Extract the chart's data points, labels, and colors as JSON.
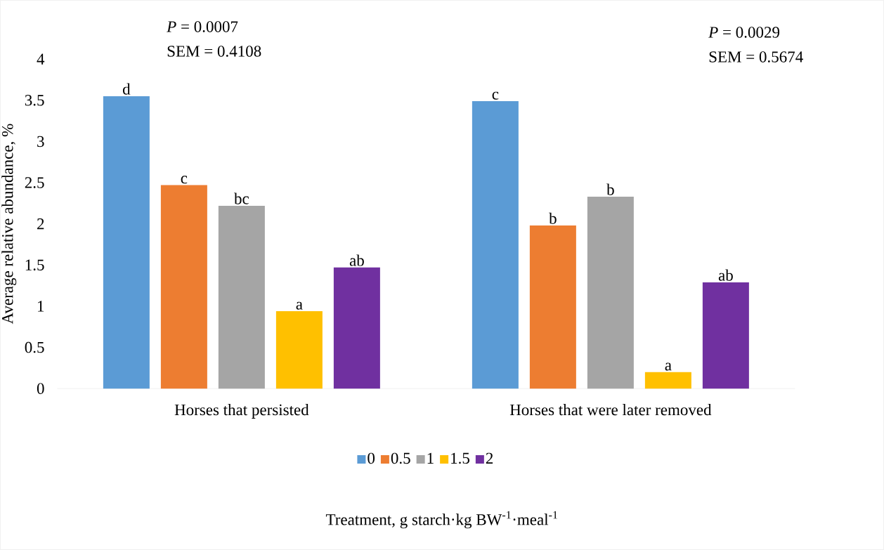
{
  "chart_data": {
    "type": "bar",
    "categories": [
      "Horses that persisted",
      "Horses that were later removed"
    ],
    "ylabel": "Average relative abundance, %",
    "legend_title": "Treatment, g starch·kg BW$^{-1}$·meal$^{-1}$",
    "series": [
      {
        "name": "0",
        "color": "#5b9bd5",
        "values": [
          3.55,
          3.49
        ],
        "value_labels": [
          "d",
          "c"
        ]
      },
      {
        "name": "0.5",
        "color": "#ed7d31",
        "values": [
          2.47,
          1.98
        ],
        "value_labels": [
          "c",
          "b"
        ]
      },
      {
        "name": "1",
        "color": "#a5a5a5",
        "values": [
          2.22,
          2.33
        ],
        "value_labels": [
          "bc",
          "b"
        ]
      },
      {
        "name": "1.5",
        "color": "#ffc000",
        "values": [
          0.94,
          0.2
        ],
        "value_labels": [
          "a",
          "a"
        ]
      },
      {
        "name": "2",
        "color": "#7030a0",
        "values": [
          1.47,
          1.29
        ],
        "value_labels": [
          "ab",
          "ab"
        ]
      }
    ],
    "ylim": [
      0,
      4
    ],
    "yticks": [
      0,
      0.5,
      1,
      1.5,
      2,
      2.5,
      3,
      3.5,
      4
    ],
    "grid": false,
    "legend": "bottom",
    "annotations": [
      "*P* = 0.0007",
      "SEM = 0.4108",
      "*P* = 0.0029",
      "SEM = 0.5674"
    ]
  }
}
